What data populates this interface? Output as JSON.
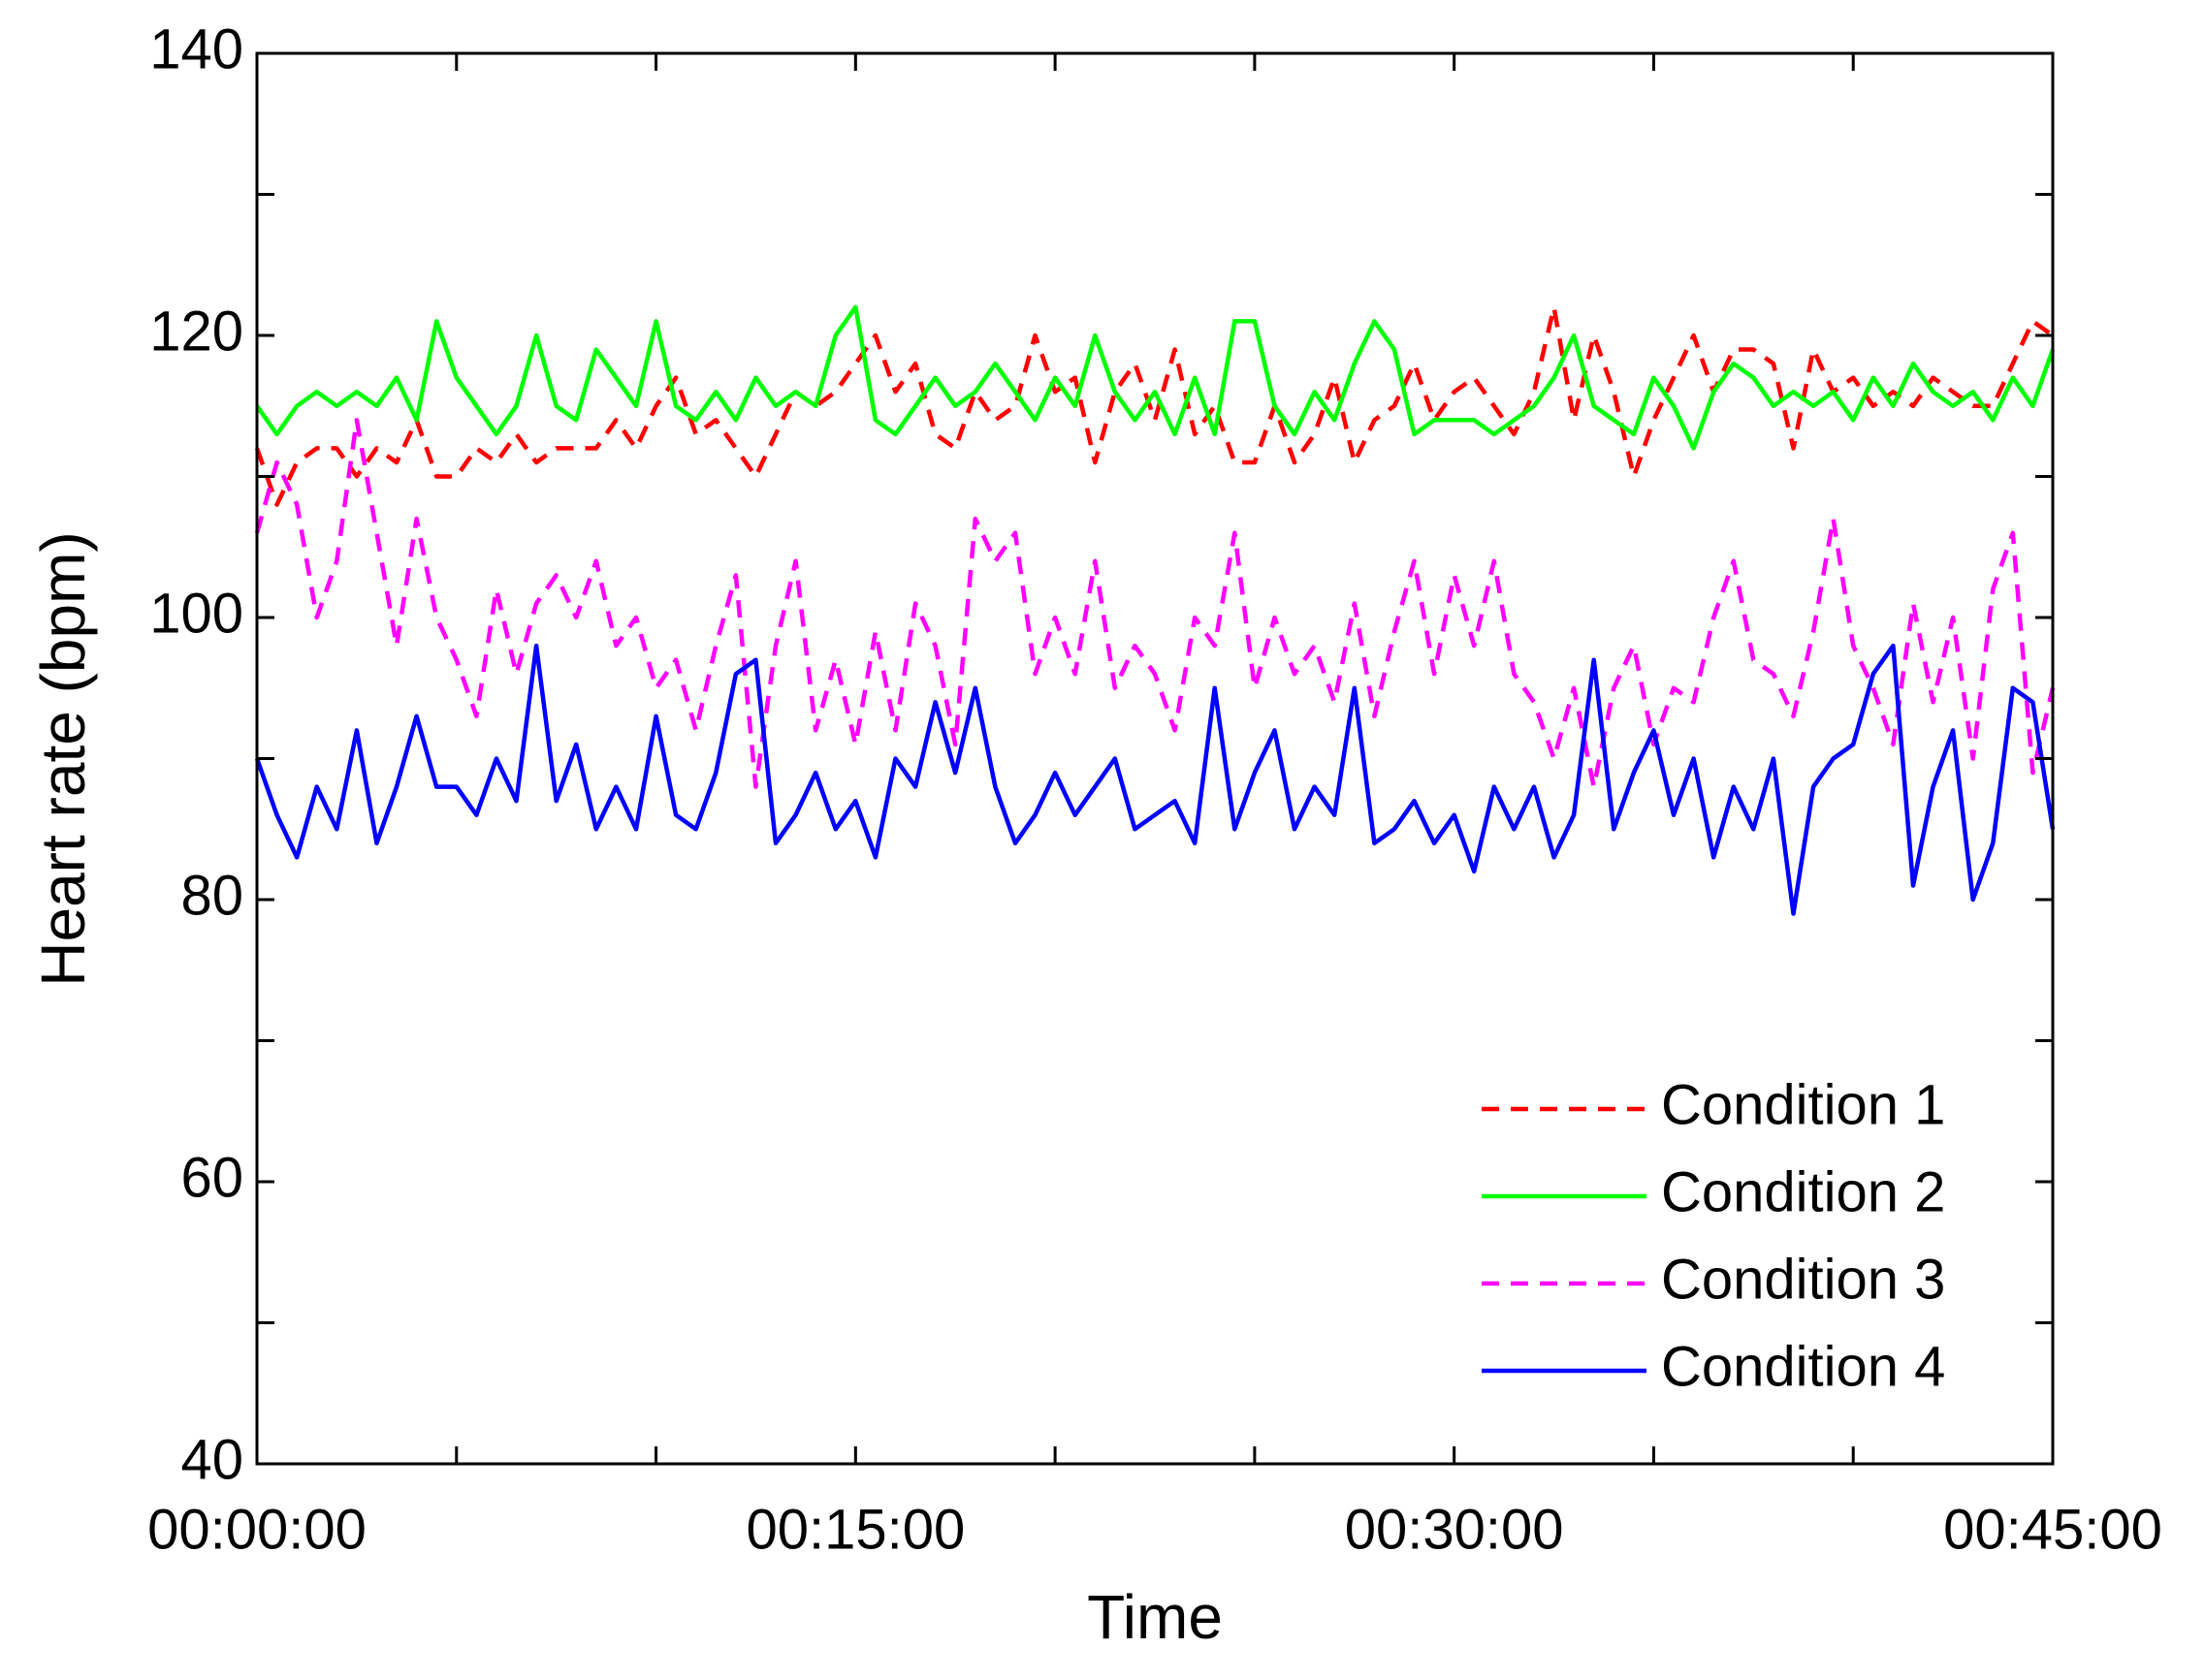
{
  "chart_data": {
    "type": "line",
    "xlabel": "Time",
    "ylabel": "Heart rate (bpm)",
    "x": [
      0,
      0.5,
      1,
      1.5,
      2,
      2.5,
      3,
      3.5,
      4,
      4.5,
      5,
      5.5,
      6,
      6.5,
      7,
      7.5,
      8,
      8.5,
      9,
      9.5,
      10,
      10.5,
      11,
      11.5,
      12,
      12.5,
      13,
      13.5,
      14,
      14.5,
      15,
      15.5,
      16,
      16.5,
      17,
      17.5,
      18,
      18.5,
      19,
      19.5,
      20,
      20.5,
      21,
      21.5,
      22,
      22.5,
      23,
      23.5,
      24,
      24.5,
      25,
      25.5,
      26,
      26.5,
      27,
      27.5,
      28,
      28.5,
      29,
      29.5,
      30,
      30.5,
      31,
      31.5,
      32,
      32.5,
      33,
      33.5,
      34,
      34.5,
      35,
      35.5,
      36,
      36.5,
      37,
      37.5,
      38,
      38.5,
      39,
      39.5,
      40,
      40.5,
      41,
      41.5,
      42,
      42.5,
      43,
      43.5,
      44,
      44.5,
      45
    ],
    "series": [
      {
        "name": "Condition 1",
        "color": "#ff0000",
        "linestyle": "dashed",
        "values": [
          112,
          108,
          111,
          112,
          112,
          110,
          112,
          111,
          114,
          110,
          110,
          112,
          111,
          113,
          111,
          112,
          112,
          112,
          114,
          112,
          115,
          117,
          113,
          114,
          112,
          110,
          113,
          116,
          115,
          116,
          118,
          120,
          116,
          118,
          113,
          112,
          116,
          114,
          115,
          120,
          116,
          117,
          111,
          116,
          118,
          114,
          119,
          113,
          115,
          111,
          111,
          115,
          111,
          113,
          117,
          111,
          114,
          115,
          118,
          114,
          116,
          117,
          115,
          113,
          116,
          122,
          114,
          120,
          116,
          110,
          114,
          117,
          120,
          116,
          119,
          119,
          118,
          112,
          119,
          116,
          117,
          115,
          116,
          115,
          117,
          116,
          115,
          115,
          118,
          121,
          120
        ]
      },
      {
        "name": "Condition 2",
        "color": "#00ff00",
        "linestyle": "solid",
        "values": [
          115,
          113,
          115,
          116,
          115,
          116,
          115,
          117,
          114,
          121,
          117,
          115,
          113,
          115,
          120,
          115,
          114,
          119,
          117,
          115,
          121,
          115,
          114,
          116,
          114,
          117,
          115,
          116,
          115,
          120,
          122,
          114,
          113,
          115,
          117,
          115,
          116,
          118,
          116,
          114,
          117,
          115,
          120,
          116,
          114,
          116,
          113,
          117,
          113,
          121,
          121,
          115,
          113,
          116,
          114,
          118,
          121,
          119,
          113,
          114,
          114,
          114,
          113,
          114,
          115,
          117,
          120,
          115,
          114,
          113,
          117,
          115,
          112,
          116,
          118,
          117,
          115,
          116,
          115,
          116,
          114,
          117,
          115,
          118,
          116,
          115,
          116,
          114,
          117,
          115,
          119
        ]
      },
      {
        "name": "Condition 3",
        "color": "#ff00ff",
        "linestyle": "dashed",
        "values": [
          106,
          111,
          108,
          100,
          104,
          114,
          106,
          98,
          107,
          100,
          97,
          93,
          102,
          96,
          101,
          103,
          100,
          104,
          98,
          100,
          95,
          97,
          92,
          98,
          103,
          88,
          98,
          104,
          92,
          97,
          91,
          99,
          92,
          101,
          98,
          91,
          107,
          104,
          106,
          96,
          100,
          96,
          104,
          95,
          98,
          96,
          92,
          100,
          98,
          106,
          95,
          100,
          96,
          98,
          94,
          101,
          93,
          99,
          104,
          96,
          103,
          98,
          104,
          96,
          94,
          90,
          95,
          88,
          95,
          98,
          91,
          95,
          94,
          100,
          104,
          97,
          96,
          93,
          99,
          107,
          98,
          95,
          91,
          101,
          94,
          100,
          90,
          102,
          106,
          89,
          95
        ]
      },
      {
        "name": "Condition 4",
        "color": "#0000ff",
        "linestyle": "solid",
        "values": [
          90,
          86,
          83,
          88,
          85,
          92,
          84,
          88,
          93,
          88,
          88,
          86,
          90,
          87,
          98,
          87,
          91,
          85,
          88,
          85,
          93,
          86,
          85,
          89,
          96,
          97,
          84,
          86,
          89,
          85,
          87,
          83,
          90,
          88,
          94,
          89,
          95,
          88,
          84,
          86,
          89,
          86,
          88,
          90,
          85,
          86,
          87,
          84,
          95,
          85,
          89,
          92,
          85,
          88,
          86,
          95,
          84,
          85,
          87,
          84,
          86,
          82,
          88,
          85,
          88,
          83,
          86,
          97,
          85,
          89,
          92,
          86,
          90,
          83,
          88,
          85,
          90,
          79,
          88,
          90,
          91,
          96,
          98,
          81,
          88,
          92,
          80,
          84,
          95,
          94,
          85
        ]
      }
    ],
    "xlim": [
      0,
      45
    ],
    "xticks": [
      {
        "value": 0,
        "label": "00:00:00"
      },
      {
        "value": 15,
        "label": "00:15:00"
      },
      {
        "value": 30,
        "label": "00:30:00"
      },
      {
        "value": 45,
        "label": "00:45:00"
      }
    ],
    "xticks_minor": [
      5,
      10,
      20,
      25,
      35,
      40
    ],
    "ylim": [
      40,
      140
    ],
    "yticks": [
      40,
      60,
      80,
      100,
      120,
      140
    ],
    "yticks_minor": [
      50,
      70,
      90,
      110,
      130
    ],
    "legend": "lower right",
    "grid": false
  }
}
